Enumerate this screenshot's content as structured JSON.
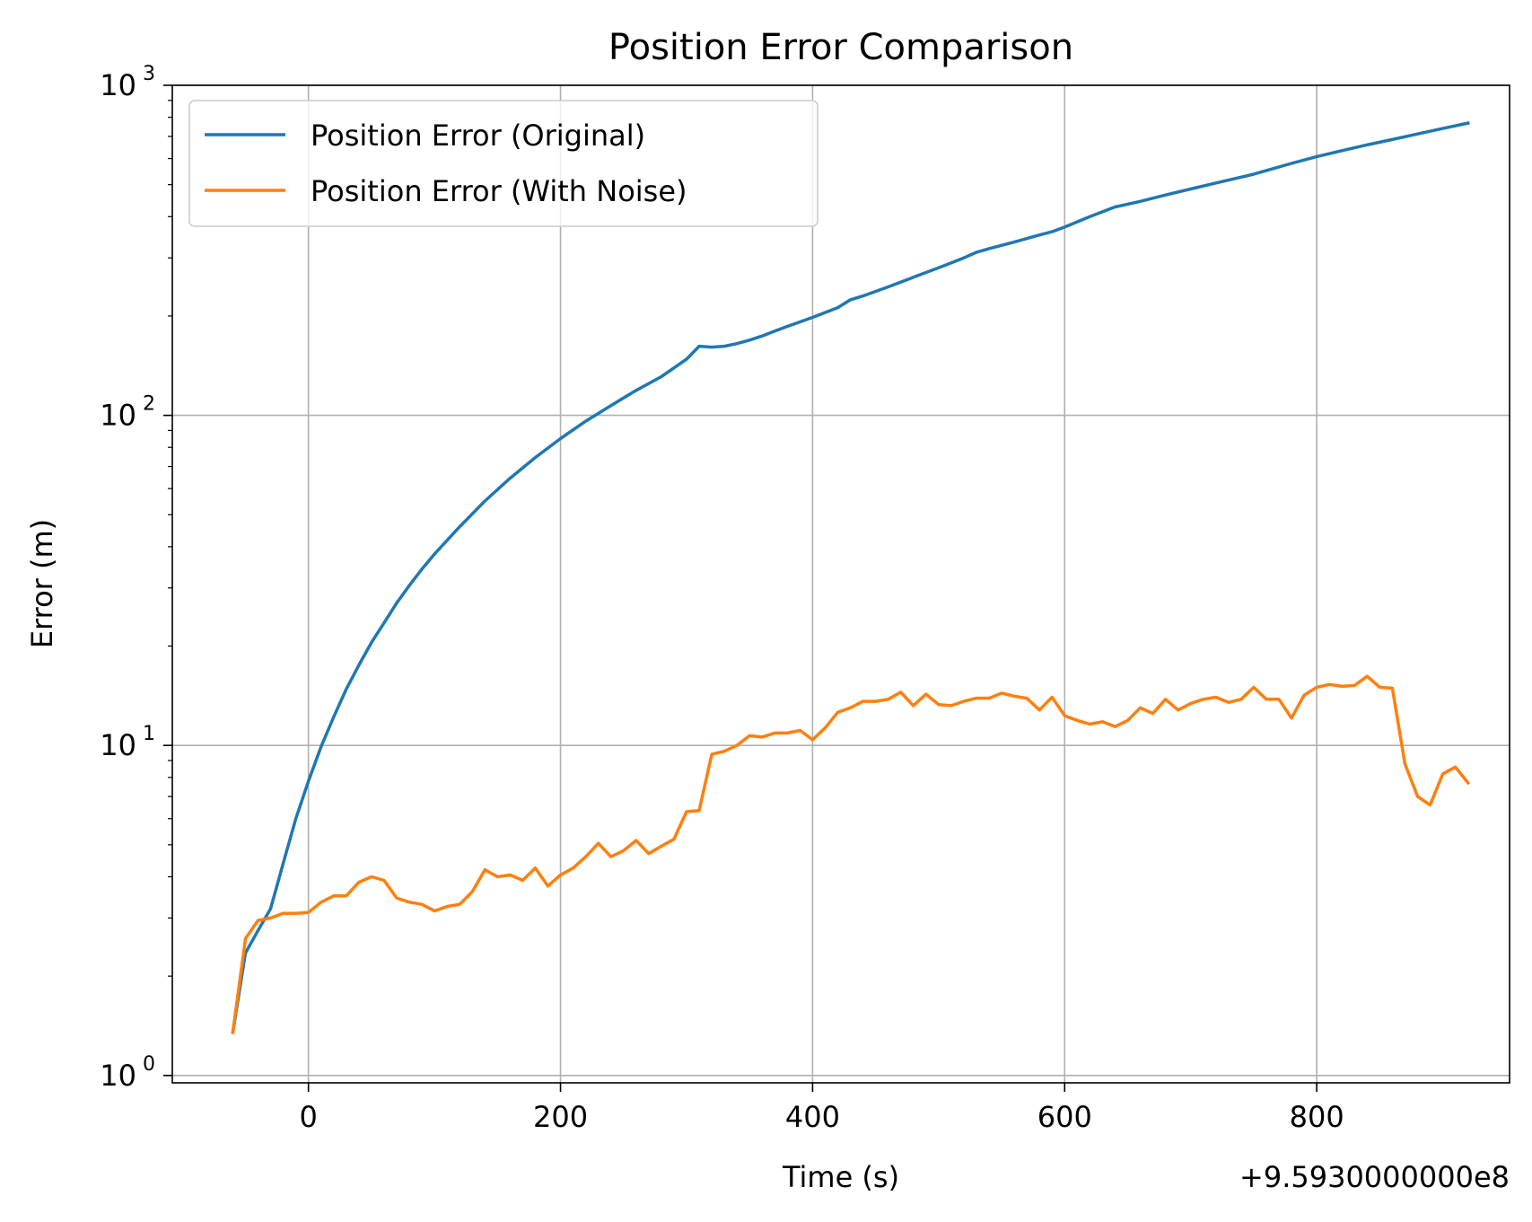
{
  "chart_data": {
    "type": "line",
    "title": "Position Error Comparison",
    "xlabel": "Time (s)",
    "ylabel": "Error (m)",
    "x_offset_label": "+9.5930000000e8",
    "y_scale": "log",
    "xlim": [
      -108,
      953
    ],
    "ylim": [
      0.95,
      1000
    ],
    "x_ticks": [
      0,
      200,
      400,
      600,
      800
    ],
    "x_tick_labels": [
      "0",
      "200",
      "400",
      "600",
      "800"
    ],
    "y_ticks": [
      1,
      10,
      100,
      1000
    ],
    "y_tick_labels": [
      {
        "base": "10",
        "exp": "0"
      },
      {
        "base": "10",
        "exp": "1"
      },
      {
        "base": "10",
        "exp": "2"
      },
      {
        "base": "10",
        "exp": "3"
      }
    ],
    "grid": true,
    "legend_position": "upper-left",
    "series": [
      {
        "name": "Position Error (Original)",
        "color": "#1f77b4",
        "x": [
          -60,
          -50,
          -40,
          -30,
          -20,
          -10,
          0,
          10,
          20,
          30,
          40,
          50,
          60,
          70,
          80,
          90,
          100,
          120,
          140,
          160,
          180,
          200,
          220,
          240,
          260,
          280,
          300,
          310,
          320,
          330,
          340,
          350,
          360,
          370,
          380,
          390,
          400,
          420,
          430,
          440,
          460,
          480,
          500,
          520,
          530,
          540,
          560,
          580,
          590,
          600,
          620,
          640,
          660,
          680,
          700,
          720,
          740,
          750,
          760,
          780,
          800,
          820,
          840,
          860,
          880,
          900,
          920
        ],
        "y": [
          1.35,
          2.35,
          2.75,
          3.2,
          4.4,
          6.0,
          7.8,
          9.9,
          12.2,
          14.8,
          17.5,
          20.5,
          23.5,
          27.0,
          30.5,
          34.2,
          38.0,
          46.0,
          55.0,
          64.5,
          74.5,
          85.0,
          96.0,
          107.0,
          119.0,
          131.0,
          148.0,
          162.0,
          161.0,
          162.0,
          165.0,
          169.0,
          174.0,
          180.0,
          186.0,
          192.0,
          198.0,
          212.0,
          224.0,
          230.0,
          245.0,
          262.0,
          280.0,
          300.0,
          312.0,
          320.0,
          335.0,
          352.0,
          360.0,
          372.0,
          400.0,
          428.0,
          445.0,
          465.0,
          485.0,
          506.0,
          527.0,
          538.0,
          552.0,
          580.0,
          608.0,
          634.0,
          660.0,
          685.0,
          712.0,
          740.0,
          768.0
        ]
      },
      {
        "name": "Position Error (With Noise)",
        "color": "#ff7f0e",
        "x": [
          -60,
          -50,
          -40,
          -30,
          -20,
          -10,
          0,
          10,
          20,
          30,
          40,
          50,
          60,
          70,
          80,
          90,
          100,
          110,
          120,
          130,
          140,
          150,
          160,
          170,
          180,
          190,
          200,
          210,
          220,
          230,
          240,
          250,
          260,
          270,
          280,
          290,
          300,
          310,
          320,
          330,
          340,
          350,
          360,
          370,
          380,
          390,
          400,
          410,
          420,
          430,
          440,
          450,
          460,
          470,
          480,
          490,
          500,
          510,
          520,
          530,
          540,
          550,
          560,
          570,
          580,
          590,
          600,
          610,
          620,
          630,
          640,
          650,
          660,
          670,
          680,
          690,
          700,
          710,
          720,
          730,
          740,
          750,
          760,
          770,
          780,
          790,
          800,
          810,
          820,
          830,
          840,
          850,
          860,
          870,
          880,
          890,
          900,
          910,
          920
        ],
        "y": [
          1.35,
          2.6,
          2.95,
          3.0,
          3.1,
          3.1,
          3.12,
          3.35,
          3.5,
          3.5,
          3.85,
          4.0,
          3.9,
          3.45,
          3.35,
          3.3,
          3.15,
          3.25,
          3.3,
          3.6,
          4.2,
          4.0,
          4.05,
          3.9,
          4.25,
          3.75,
          4.05,
          4.25,
          4.6,
          5.05,
          4.6,
          4.8,
          5.15,
          4.7,
          4.95,
          5.2,
          6.3,
          6.35,
          9.4,
          9.6,
          10.0,
          10.7,
          10.6,
          10.9,
          10.9,
          11.1,
          10.4,
          11.3,
          12.6,
          13.0,
          13.6,
          13.6,
          13.8,
          14.5,
          13.2,
          14.3,
          13.3,
          13.2,
          13.6,
          13.9,
          13.9,
          14.4,
          14.1,
          13.9,
          12.8,
          14.0,
          12.3,
          11.9,
          11.6,
          11.8,
          11.4,
          11.9,
          13.0,
          12.5,
          13.8,
          12.8,
          13.4,
          13.8,
          14.0,
          13.5,
          13.8,
          15.0,
          13.8,
          13.8,
          12.1,
          14.2,
          15.0,
          15.3,
          15.1,
          15.2,
          16.2,
          15.0,
          14.9,
          8.8,
          7.0,
          6.6,
          8.2,
          8.6,
          7.7
        ]
      }
    ]
  }
}
